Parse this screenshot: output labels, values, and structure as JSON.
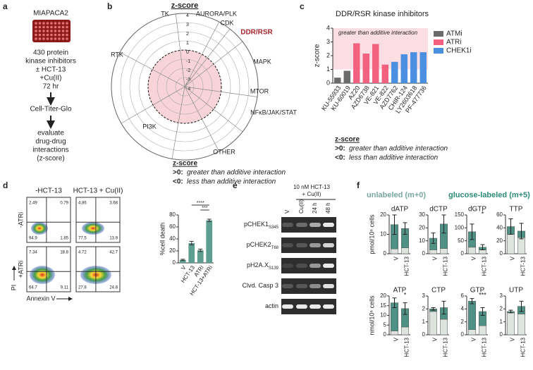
{
  "panel_labels": [
    "a",
    "b",
    "c",
    "d",
    "e",
    "f"
  ],
  "panel_a": {
    "cell_line": "MIAPACA2",
    "treatment": [
      "430 protein",
      "kinase inhibitors",
      "± HCT-13",
      "+Cu(II)",
      "72 hr"
    ],
    "assay": "Cell-Titer-Glo",
    "analysis": [
      "evaluate",
      "drug-drug",
      "interactions",
      "(z-score)"
    ]
  },
  "panel_b": {
    "title": "z-score",
    "rlim": [
      -4,
      4
    ],
    "rticks": [
      4,
      3,
      2,
      1,
      0,
      -1,
      -2,
      -3,
      -4
    ],
    "categories": [
      {
        "label": "TK"
      },
      {
        "label": "AURORA/PLK"
      },
      {
        "label": "CDK"
      },
      {
        "label": "DDR/RSR",
        "color": "#a8242b"
      },
      {
        "label": "MAPK"
      },
      {
        "label": "MTOR"
      },
      {
        "label": "NFκB/JAK/STAT"
      },
      {
        "label": "OTHER"
      },
      {
        "label": "PI3K"
      },
      {
        "label": "RTK"
      }
    ],
    "legend": {
      "title": "z-score",
      "items": [
        {
          "key": ">0:",
          "text": "greater than additive interaction"
        },
        {
          "key": "<0:",
          "text": "less than additive interaction"
        }
      ]
    }
  },
  "panel_d": {
    "columns": [
      "-HCT-13",
      "HCT-13 + Cu(II)"
    ],
    "rows": [
      "-ATRi",
      "+ATRi"
    ],
    "y_axis": "PI",
    "x_axis": "Annexin V",
    "quadrants": [
      [
        [
          2.49,
          0.79,
          94.9,
          1.85
        ],
        [
          4.86,
          3.68,
          77.5,
          13.9
        ]
      ],
      [
        [
          7.34,
          18.8,
          64.7,
          9.11
        ],
        [
          4.72,
          42.7,
          27.8,
          24.8
        ]
      ]
    ]
  },
  "panel_e": {
    "header": [
      "10 nM HCT-13",
      "+ Cu(II)"
    ],
    "lanes": [
      "V",
      "Cu(II)",
      "24 h",
      "48 h"
    ],
    "rows": [
      {
        "name": "pCHEK1",
        "sub": "S345"
      },
      {
        "name": "pCHEK2",
        "sub": "T68"
      },
      {
        "name": "pH2A.X",
        "sub": "S139"
      },
      {
        "name": "Clvd. Casp 3"
      },
      {
        "name": "actin"
      }
    ]
  },
  "chart_data": [
    {
      "type": "bar",
      "title": "DDR/RSR kinase inhibitors",
      "y_label": "z-score",
      "annotation": "greater than additive interaction",
      "shade_ylim": [
        1,
        4
      ],
      "categories": [
        "KU-55933",
        "KU-60019",
        "AZ20",
        "AZD6738",
        "VE-821",
        "VE-822",
        "AZD7762",
        "CHIR-124",
        "LY2603618",
        "PF-477736"
      ],
      "series": [
        {
          "name": "ATMi",
          "color": "#6b6b6b",
          "values": [
            0.4,
            0.9,
            null,
            null,
            null,
            null,
            null,
            null,
            null,
            null
          ]
        },
        {
          "name": "ATRi",
          "color": "#f2617f",
          "values": [
            null,
            null,
            2.9,
            2.15,
            2.85,
            1.35,
            null,
            null,
            null,
            null
          ]
        },
        {
          "name": "CHEK1i",
          "color": "#4a8fe0",
          "values": [
            null,
            null,
            null,
            null,
            null,
            null,
            1.55,
            2.1,
            2.25,
            2.25
          ]
        }
      ],
      "ylim": [
        0,
        4
      ],
      "yticks": [
        0,
        1,
        2,
        3,
        4
      ],
      "note": {
        "title": "z-score",
        "items": [
          {
            "key": ">0:",
            "text": "greater than additive interaction"
          },
          {
            "key": "<0:",
            "text": "less than additive interaction"
          }
        ]
      }
    },
    {
      "type": "bar",
      "y_label": "%cell death",
      "categories": [
        "V",
        "HCT-13",
        "ATRi",
        "HCT-13+ATRi"
      ],
      "values": [
        5,
        33,
        21,
        71
      ],
      "errors": [
        1,
        3,
        2,
        2
      ],
      "color": "#5e9e90",
      "ylim": [
        0,
        80
      ],
      "yticks": [
        0,
        20,
        40,
        60,
        80
      ],
      "significance": [
        {
          "label": "****",
          "between": [
            "HCT-13",
            "HCT-13+ATRi"
          ]
        },
        {
          "label": "***",
          "between": [
            "ATRi",
            "HCT-13+ATRi"
          ]
        }
      ]
    },
    {
      "type": "stacked_bar",
      "title": "dATP",
      "y_label": "pmol/10⁶ cells",
      "categories": [
        "V",
        "HCT-13"
      ],
      "series": [
        {
          "name": "unlabeled (m+0)",
          "color": "#dde3dd",
          "values": [
            2.5,
            3
          ]
        },
        {
          "name": "glucose-labeled (m+5)",
          "color": "#4f9185",
          "values": [
            12.5,
            10
          ],
          "errors": [
            5,
            3
          ]
        }
      ],
      "ylim": [
        0,
        20
      ],
      "yticks": [
        0,
        10,
        20
      ]
    },
    {
      "type": "stacked_bar",
      "title": "dCTP",
      "categories": [
        "V",
        "HCT-13"
      ],
      "series": [
        {
          "color": "#dde3dd",
          "values": [
            3,
            4
          ]
        },
        {
          "color": "#4f9185",
          "values": [
            9,
            19
          ],
          "errors": [
            4,
            7
          ]
        }
      ],
      "ylim": [
        0,
        30
      ],
      "yticks": [
        0,
        10,
        20,
        30
      ]
    },
    {
      "type": "stacked_bar",
      "title": "dGTP",
      "annotation": "*",
      "categories": [
        "V",
        "HCT-13"
      ],
      "series": [
        {
          "color": "#dde3dd",
          "values": [
            25,
            15
          ]
        },
        {
          "color": "#4f9185",
          "values": [
            60,
            10
          ],
          "errors": [
            30,
            10
          ]
        }
      ],
      "ylim": [
        0,
        150
      ],
      "yticks": [
        0,
        50,
        100,
        150
      ]
    },
    {
      "type": "stacked_bar",
      "title": "TTP",
      "categories": [
        "V",
        "HCT-13"
      ],
      "series": [
        {
          "color": "#dde3dd",
          "values": [
            30,
            25
          ]
        },
        {
          "color": "#4f9185",
          "values": [
            12,
            10
          ],
          "errors": [
            12,
            12
          ]
        }
      ],
      "ylim": [
        0,
        60
      ],
      "yticks": [
        0,
        20,
        40,
        60
      ]
    },
    {
      "type": "stacked_bar",
      "title": "ATP",
      "y_label": "nmol/10⁶ cells",
      "annotation": "*",
      "categories": [
        "V",
        "HCT-13"
      ],
      "series": [
        {
          "color": "#dde3dd",
          "values": [
            2,
            4
          ]
        },
        {
          "color": "#4f9185",
          "values": [
            14.5,
            9.5
          ],
          "errors": [
            2.5,
            3
          ]
        }
      ],
      "ylim": [
        0,
        20
      ],
      "yticks": [
        0,
        5,
        10,
        15,
        20
      ]
    },
    {
      "type": "stacked_bar",
      "title": "CTP",
      "categories": [
        "V",
        "HCT-13"
      ],
      "series": [
        {
          "color": "#dde3dd",
          "values": [
            1.8,
            1.2
          ]
        },
        {
          "color": "#4f9185",
          "values": [
            0.2,
            0.9
          ],
          "errors": [
            0.1,
            0.5
          ]
        }
      ],
      "ylim": [
        0,
        3
      ],
      "yticks": [
        0,
        1,
        2,
        3
      ]
    },
    {
      "type": "stacked_bar",
      "title": "GTP",
      "annotation": "***",
      "categories": [
        "V",
        "HCT-13"
      ],
      "series": [
        {
          "color": "#dde3dd",
          "values": [
            0.8,
            1.4
          ]
        },
        {
          "color": "#4f9185",
          "values": [
            4.4,
            2.2
          ],
          "errors": [
            0.4,
            0.6
          ]
        }
      ],
      "ylim": [
        0,
        6
      ],
      "yticks": [
        0,
        2,
        4,
        6
      ]
    },
    {
      "type": "stacked_bar",
      "title": "UTP",
      "categories": [
        "V",
        "HCT-13"
      ],
      "series": [
        {
          "color": "#dde3dd",
          "values": [
            1.7,
            1.6
          ]
        },
        {
          "color": "#4f9185",
          "values": [
            0.1,
            0.6
          ],
          "errors": [
            0.1,
            0.4
          ]
        }
      ],
      "ylim": [
        0,
        3
      ],
      "yticks": [
        0,
        1,
        2,
        3
      ]
    }
  ]
}
